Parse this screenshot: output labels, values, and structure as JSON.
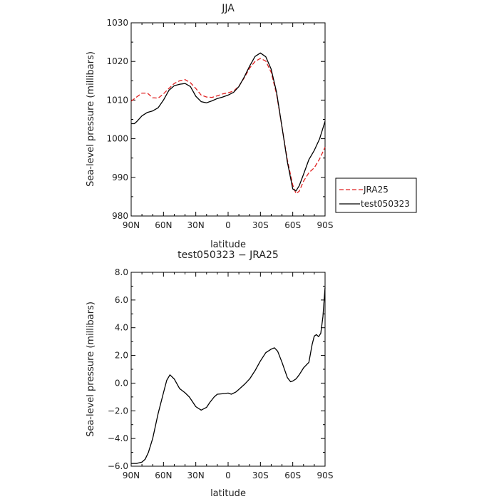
{
  "chart_data": [
    {
      "type": "line",
      "title": "JJA",
      "xlabel": "latitude",
      "ylabel": "Sea-level pressure (millibars)",
      "xlim": [
        90,
        -90
      ],
      "ylim": [
        980,
        1030
      ],
      "xticks": [
        90,
        60,
        30,
        0,
        -30,
        -60,
        -90
      ],
      "xtick_labels": [
        "90N",
        "60N",
        "30N",
        "0",
        "30S",
        "60S",
        "90S"
      ],
      "yticks": [
        980,
        990,
        1000,
        1010,
        1020,
        1030
      ],
      "ytick_labels": [
        "980",
        "990",
        "1000",
        "1010",
        "1020",
        "1030"
      ],
      "legend": "right, outside",
      "series": [
        {
          "name": "JRA25",
          "color": "#e02020",
          "dash": "dashed",
          "x": [
            90,
            85,
            80,
            75,
            70,
            65,
            60,
            55,
            50,
            45,
            40,
            35,
            30,
            25,
            20,
            15,
            10,
            5,
            0,
            -5,
            -10,
            -15,
            -20,
            -25,
            -30,
            -35,
            -40,
            -45,
            -50,
            -55,
            -60,
            -63,
            -66,
            -70,
            -75,
            -80,
            -85,
            -90
          ],
          "values": [
            1009.7,
            1010.8,
            1011.8,
            1011.8,
            1010.6,
            1010.5,
            1011.6,
            1013.0,
            1014.3,
            1015.0,
            1015.3,
            1014.5,
            1013.0,
            1011.3,
            1010.8,
            1010.7,
            1011.1,
            1011.6,
            1011.9,
            1012.3,
            1013.6,
            1015.8,
            1018.3,
            1020.0,
            1020.8,
            1020.1,
            1017.2,
            1011.5,
            1003.0,
            994.5,
            988.0,
            985.8,
            986.4,
            989.0,
            991.2,
            992.5,
            994.8,
            997.8
          ]
        },
        {
          "name": "test050323",
          "color": "#000000",
          "dash": "solid",
          "x": [
            90,
            87,
            85,
            80,
            75,
            70,
            65,
            60,
            55,
            50,
            45,
            40,
            35,
            30,
            25,
            20,
            15,
            10,
            5,
            0,
            -5,
            -10,
            -15,
            -20,
            -25,
            -30,
            -35,
            -40,
            -45,
            -50,
            -55,
            -60,
            -63,
            -66,
            -70,
            -75,
            -80,
            -85,
            -90
          ],
          "values": [
            1003.9,
            1003.9,
            1004.4,
            1005.9,
            1006.8,
            1007.2,
            1008.0,
            1010.0,
            1012.5,
            1013.7,
            1014.1,
            1014.3,
            1013.5,
            1011.0,
            1009.6,
            1009.3,
            1009.8,
            1010.4,
            1010.8,
            1011.3,
            1012.0,
            1013.5,
            1016.0,
            1018.8,
            1021.3,
            1022.2,
            1021.2,
            1018.0,
            1012.0,
            1003.0,
            994.0,
            987.0,
            986.5,
            987.8,
            990.8,
            994.6,
            997.0,
            1000.0,
            1004.5
          ]
        }
      ]
    },
    {
      "type": "line",
      "title": "test050323 − JRA25",
      "xlabel": "latitude",
      "ylabel": "Sea-level pressure (millibars)",
      "xlim": [
        90,
        -90
      ],
      "ylim": [
        -6.0,
        8.0
      ],
      "xticks": [
        90,
        60,
        30,
        0,
        -30,
        -60,
        -90
      ],
      "xtick_labels": [
        "90N",
        "60N",
        "30N",
        "0",
        "30S",
        "60S",
        "90S"
      ],
      "yticks": [
        -6,
        -4,
        -2,
        0,
        2,
        4,
        6,
        8
      ],
      "ytick_labels": [
        "−6.0",
        "−4.0",
        "−2.0",
        "0.0",
        "2.0",
        "4.0",
        "6.0",
        "8.0"
      ],
      "series": [
        {
          "color": "#000000",
          "dash": "solid",
          "x": [
            90,
            85,
            80,
            77,
            74,
            70,
            65,
            60,
            57,
            54,
            50,
            45,
            40,
            36,
            30,
            25,
            20,
            17,
            13,
            10,
            7,
            3,
            0,
            -3,
            -7,
            -10,
            -15,
            -20,
            -25,
            -30,
            -35,
            -40,
            -43,
            -46,
            -50,
            -55,
            -58,
            -60,
            -63,
            -66,
            -70,
            -75,
            -78,
            -80,
            -82,
            -84,
            -86,
            -88,
            -90
          ],
          "values": [
            -5.8,
            -5.8,
            -5.7,
            -5.5,
            -5.0,
            -4.0,
            -2.2,
            -0.7,
            0.2,
            0.6,
            0.3,
            -0.4,
            -0.7,
            -1.0,
            -1.7,
            -1.95,
            -1.75,
            -1.4,
            -1.0,
            -0.8,
            -0.78,
            -0.75,
            -0.72,
            -0.8,
            -0.65,
            -0.45,
            -0.1,
            0.3,
            0.9,
            1.6,
            2.2,
            2.45,
            2.55,
            2.3,
            1.5,
            0.4,
            0.1,
            0.15,
            0.3,
            0.6,
            1.1,
            1.5,
            2.8,
            3.4,
            3.5,
            3.35,
            3.6,
            4.8,
            6.9
          ]
        }
      ]
    }
  ]
}
